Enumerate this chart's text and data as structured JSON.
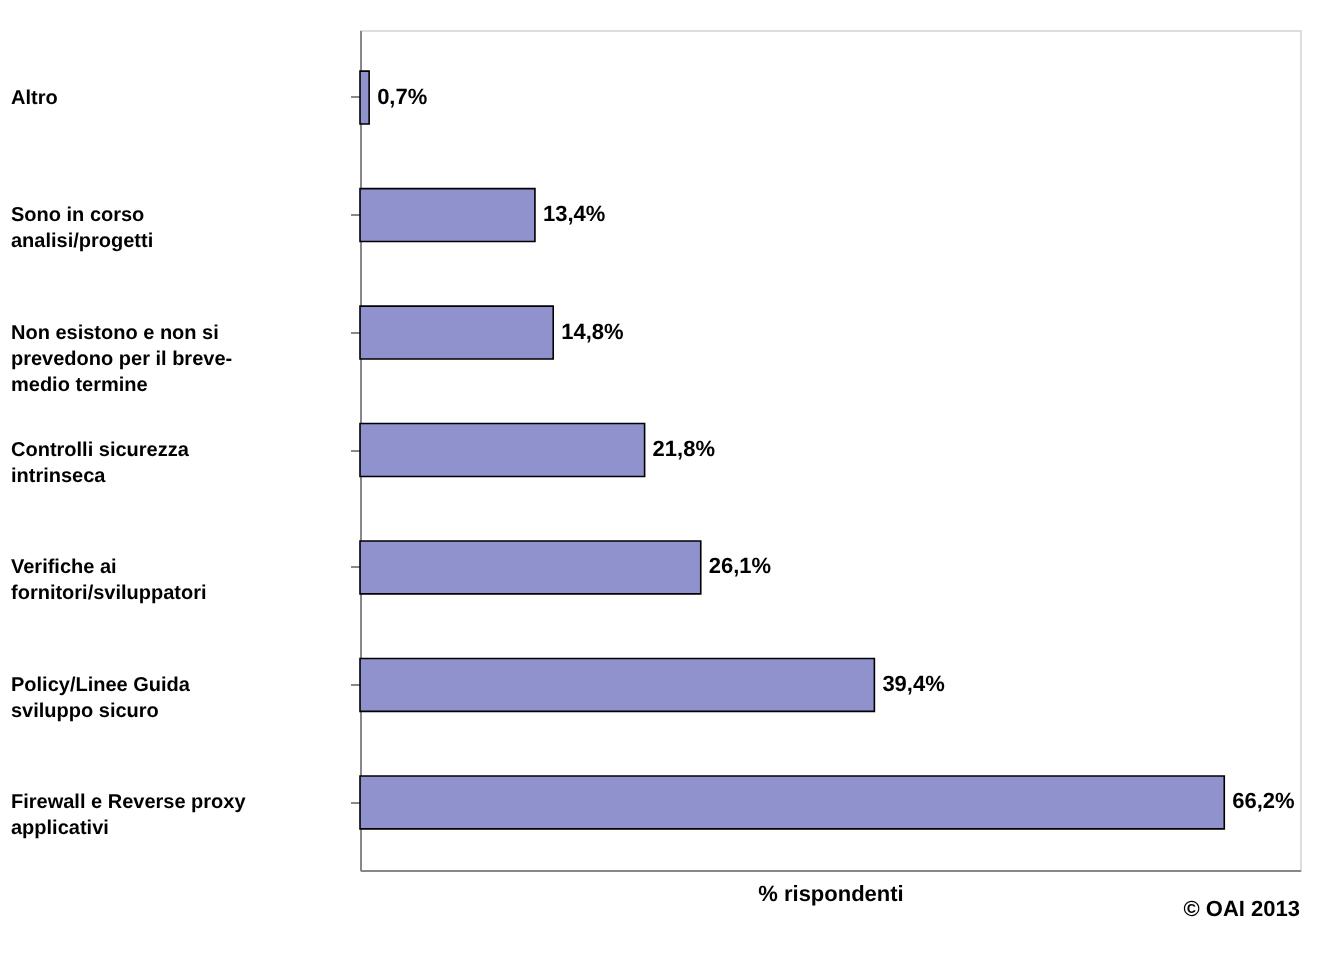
{
  "chart_data": {
    "type": "bar",
    "orientation": "horizontal",
    "xlabel": "% rispondenti",
    "categories": [
      "Altro",
      "Sono in corso\nanalisi/progetti",
      "Non esistono e non si\nprevedono per il breve-\nmedio termine",
      "Controlli sicurezza\nintrinseca",
      "Verifiche ai\nfornitori/sviluppatori",
      "Policy/Linee Guida\nsviluppo sicuro",
      "Firewall e Reverse proxy\napplicativi"
    ],
    "values": [
      0.7,
      13.4,
      14.8,
      21.8,
      26.1,
      39.4,
      66.2
    ],
    "value_labels": [
      "0,7%",
      "13,4%",
      "14,8%",
      "21,8%",
      "26,1%",
      "39,4%",
      "66,2%"
    ],
    "color": "#8f92cc",
    "xlim": [
      0,
      72
    ],
    "tick_labels": "y",
    "grid": false,
    "annotations": [
      "© OAI 2013"
    ]
  }
}
